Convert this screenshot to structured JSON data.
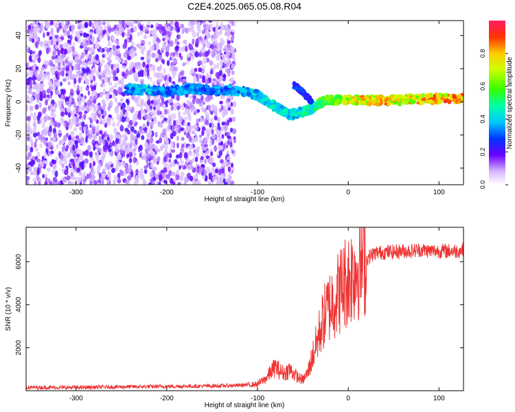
{
  "title": "C2E4.2025.065.05.08.R04",
  "chart_data": [
    {
      "type": "heatmap",
      "xlabel": "Height of straight line (km)",
      "ylabel": "Frequency (Hz)",
      "xlim": [
        -355,
        127
      ],
      "ylim": [
        -50,
        49
      ],
      "xticks": [
        -300,
        -200,
        -100,
        0,
        100
      ],
      "yticks": [
        -40,
        -20,
        0,
        20,
        40
      ],
      "xtick_labels": [
        "-300",
        "-200",
        "-100",
        "0",
        "100"
      ],
      "ytick_labels": [
        "-40",
        "-20",
        "0",
        "20",
        "40"
      ],
      "noise_band": {
        "x_range": [
          -355,
          -125
        ],
        "description_level": 0.15
      },
      "ridge": [
        {
          "x": -245,
          "y": 8,
          "amp": 0.35
        },
        {
          "x": -225,
          "y": 7,
          "amp": 0.45
        },
        {
          "x": -200,
          "y": 6,
          "amp": 0.35
        },
        {
          "x": -175,
          "y": 8,
          "amp": 0.4
        },
        {
          "x": -150,
          "y": 7,
          "amp": 0.35
        },
        {
          "x": -125,
          "y": 7,
          "amp": 0.4
        },
        {
          "x": -100,
          "y": 4,
          "amp": 0.45
        },
        {
          "x": -80,
          "y": -3,
          "amp": 0.5
        },
        {
          "x": -65,
          "y": -8,
          "amp": 0.45
        },
        {
          "x": -50,
          "y": -6,
          "amp": 0.5
        },
        {
          "x": -40,
          "y": -4,
          "amp": 0.55
        },
        {
          "x": -25,
          "y": 1,
          "amp": 0.7
        },
        {
          "x": 0,
          "y": 1,
          "amp": 0.8
        },
        {
          "x": 25,
          "y": 1,
          "amp": 0.85
        },
        {
          "x": 50,
          "y": 1,
          "amp": 0.85
        },
        {
          "x": 75,
          "y": 1.5,
          "amp": 0.85
        },
        {
          "x": 100,
          "y": 2,
          "amp": 0.9
        },
        {
          "x": 127,
          "y": 2,
          "amp": 0.9
        }
      ],
      "branch": [
        {
          "x": -60,
          "y": 10,
          "amp": 0.3
        },
        {
          "x": -50,
          "y": 6,
          "amp": 0.3
        },
        {
          "x": -40,
          "y": 0,
          "amp": 0.3
        }
      ],
      "colorbar": {
        "label": "Normalized spectral amplitude",
        "ticks": [
          0.0,
          0.2,
          0.4,
          0.6,
          0.8
        ],
        "tick_labels": [
          "0.0",
          "0.2",
          "0.4",
          "0.6",
          "0.8"
        ],
        "range": [
          0,
          1
        ]
      }
    },
    {
      "type": "line",
      "xlabel": "Height of straight line (km)",
      "ylabel": "SNR (10 * v/v)",
      "xlim": [
        -355,
        127
      ],
      "ylim": [
        0,
        7600
      ],
      "xticks": [
        -300,
        -200,
        -100,
        0,
        100
      ],
      "yticks": [
        2000,
        4000,
        6000
      ],
      "xtick_labels": [
        "-300",
        "-200",
        "-100",
        "0",
        "100"
      ],
      "ytick_labels": [
        "2000",
        "4000",
        "6000"
      ],
      "series": [
        {
          "color": "#ee3333",
          "x": [
            -355,
            -300,
            -250,
            -200,
            -150,
            -120,
            -100,
            -90,
            -85,
            -80,
            -75,
            -70,
            -65,
            -60,
            -55,
            -50,
            -45,
            -40,
            -35,
            -30,
            -25,
            -20,
            -15,
            -10,
            -5,
            0,
            5,
            10,
            15,
            20,
            25,
            30,
            40,
            50,
            60,
            70,
            80,
            90,
            100,
            110,
            120,
            127
          ],
          "y": [
            150,
            150,
            180,
            200,
            220,
            250,
            300,
            600,
            900,
            1100,
            900,
            800,
            1000,
            800,
            600,
            500,
            800,
            1500,
            2200,
            3000,
            3600,
            4000,
            4300,
            4600,
            5000,
            5200,
            5500,
            5800,
            6000,
            6100,
            6300,
            6400,
            6450,
            6450,
            6500,
            6500,
            6550,
            6500,
            6500,
            6500,
            6500,
            6550
          ]
        }
      ]
    }
  ]
}
